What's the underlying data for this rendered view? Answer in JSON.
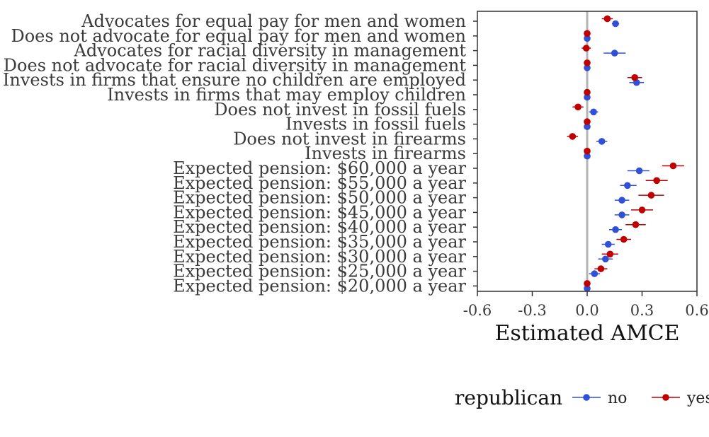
{
  "chart_data": {
    "type": "scatter",
    "title": "",
    "xlabel": "Estimated AMCE",
    "ylabel": "",
    "xlim": [
      -0.6,
      0.6
    ],
    "xticks": [
      -0.6,
      -0.3,
      0.0,
      0.3,
      0.6
    ],
    "xtick_labels": [
      "-0.6",
      "-0.3",
      "0.0",
      "0.3",
      "0.6"
    ],
    "reference_line": 0,
    "grid": false,
    "legend": {
      "title": "republican",
      "position": "bottom"
    },
    "colors": {
      "no": "#3050d8",
      "yes": "#c00000",
      "refline": "#b3b3b3",
      "axis": "#333333"
    },
    "categories": [
      "Advocates for equal pay for men and women",
      "Does not advocate for equal pay for men and women",
      "Advocates for racial diversity in management",
      "Does not advocate for racial diversity in management",
      "Invests in firms that ensure no children are employed",
      "Invests in firms that may employ children",
      "Does not invest in fossil fuels",
      "Invests in fossil fuels",
      "Does not invest in firearms",
      "Invests in firearms",
      "Expected pension: $60,000 a year",
      "Expected pension: $55,000 a year",
      "Expected pension: $50,000 a year",
      "Expected pension: $45,000 a year",
      "Expected pension: $40,000 a year",
      "Expected pension: $35,000 a year",
      "Expected pension: $30,000 a year",
      "Expected pension: $25,000 a year",
      "Expected pension: $20,000 a year"
    ],
    "series": [
      {
        "name": "no",
        "estimates": [
          0.155,
          0.0,
          0.15,
          0.0,
          0.27,
          0.0,
          0.035,
          0.0,
          0.08,
          0.0,
          0.285,
          0.22,
          0.19,
          0.19,
          0.155,
          0.115,
          0.1,
          0.04,
          0.0
        ],
        "ci_low": [
          0.135,
          0.0,
          0.09,
          0.0,
          0.23,
          0.0,
          0.01,
          0.0,
          0.05,
          0.0,
          0.22,
          0.18,
          0.15,
          0.15,
          0.12,
          0.08,
          0.06,
          0.01,
          0.0
        ],
        "ci_high": [
          0.175,
          0.0,
          0.21,
          0.0,
          0.31,
          0.0,
          0.06,
          0.0,
          0.11,
          0.0,
          0.34,
          0.27,
          0.23,
          0.23,
          0.19,
          0.15,
          0.14,
          0.07,
          0.0
        ]
      },
      {
        "name": "yes",
        "estimates": [
          0.11,
          0.0,
          -0.005,
          0.0,
          0.26,
          0.0,
          -0.05,
          0.0,
          -0.08,
          0.0,
          0.47,
          0.38,
          0.35,
          0.3,
          0.265,
          0.2,
          0.125,
          0.075,
          0.0
        ],
        "ci_low": [
          0.08,
          0.0,
          -0.03,
          0.0,
          0.22,
          0.0,
          -0.08,
          0.0,
          -0.11,
          0.0,
          0.41,
          0.32,
          0.28,
          0.24,
          0.21,
          0.16,
          0.08,
          0.04,
          0.0
        ],
        "ci_high": [
          0.14,
          0.0,
          0.02,
          0.0,
          0.3,
          0.0,
          -0.02,
          0.0,
          -0.05,
          0.0,
          0.53,
          0.44,
          0.42,
          0.36,
          0.32,
          0.24,
          0.17,
          0.11,
          0.0
        ]
      }
    ]
  }
}
